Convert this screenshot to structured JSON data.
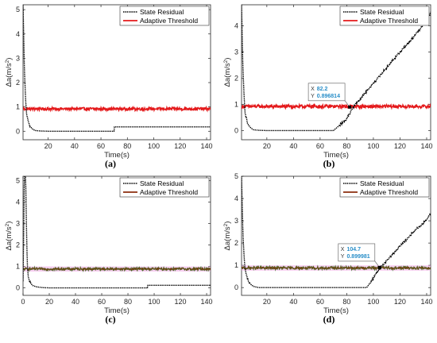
{
  "chart_data": [
    {
      "id": "a",
      "type": "line",
      "panel_label": "(a)",
      "xlabel": "Time(s)",
      "ylabel_base": "Δa(m/s",
      "ylabel_sup": "2",
      "ylabel_close": ")",
      "xlim": [
        1,
        143
      ],
      "ylim": [
        -0.35,
        5.2
      ],
      "xticks": [
        "20",
        "40",
        "60",
        "80",
        "100",
        "120",
        "140"
      ],
      "yticks": [
        "0",
        "1",
        "2",
        "3",
        "4",
        "5"
      ],
      "threshold_style": "red",
      "legend": {
        "placement": "top-right",
        "entries": [
          "State Residual",
          "Adaptive Threshold"
        ]
      },
      "series": [
        {
          "name": "State Residual",
          "color": "#000000",
          "style": "dotted",
          "x": [
            1,
            2,
            3,
            3.6,
            4.3,
            5,
            6,
            8,
            10,
            14,
            20,
            30,
            40,
            50,
            60,
            70,
            70,
            80,
            90,
            100,
            110,
            120,
            130,
            140,
            143
          ],
          "y": [
            5.2,
            2.6,
            1.25,
            0.75,
            0.55,
            0.4,
            0.22,
            0.1,
            0.03,
            0.01,
            0.0,
            0.0,
            0.0,
            0.0,
            0.0,
            0.0,
            0.18,
            0.18,
            0.18,
            0.18,
            0.18,
            0.18,
            0.18,
            0.18,
            0.18
          ]
        },
        {
          "name": "Adaptive Threshold",
          "color": "#e41a1c",
          "style": "noisy",
          "mean": 0.92,
          "noise": 0.06,
          "x": [
            1,
            143
          ],
          "y": [
            0.92,
            0.92
          ]
        }
      ]
    },
    {
      "id": "b",
      "type": "line",
      "panel_label": "(b)",
      "xlabel": "Time(s)",
      "ylabel_base": "Δa(m/s",
      "ylabel_sup": "2",
      "ylabel_close": ")",
      "xlim": [
        1,
        143
      ],
      "ylim": [
        -0.35,
        4.8
      ],
      "xticks": [
        "20",
        "40",
        "60",
        "80",
        "100",
        "120",
        "140"
      ],
      "yticks": [
        "0",
        "1",
        "2",
        "3",
        "4"
      ],
      "threshold_style": "red",
      "legend": {
        "placement": "top-right",
        "entries": [
          "State Residual",
          "Adaptive Threshold"
        ]
      },
      "datatip": {
        "x_label": "X",
        "x_value": "82.2",
        "y_label": "Y",
        "y_value": "0.896814",
        "x": 82.2,
        "y": 0.8968
      },
      "series": [
        {
          "name": "State Residual",
          "color": "#000000",
          "style": "dotted",
          "x": [
            1,
            2,
            3,
            3.6,
            4.3,
            5,
            6,
            8,
            10,
            14,
            20,
            30,
            40,
            50,
            60,
            70,
            75,
            80,
            85,
            90,
            100,
            110,
            120,
            130,
            140,
            143
          ],
          "y": [
            4.8,
            2.4,
            1.2,
            0.72,
            0.52,
            0.38,
            0.22,
            0.1,
            0.03,
            0.01,
            0.0,
            0.0,
            0.0,
            0.0,
            0.0,
            0.0,
            0.22,
            0.45,
            0.9,
            1.2,
            1.8,
            2.4,
            3.0,
            3.55,
            4.2,
            4.5
          ]
        },
        {
          "name": "Adaptive Threshold",
          "color": "#e41a1c",
          "style": "noisy",
          "mean": 0.92,
          "noise": 0.06,
          "x": [
            1,
            143
          ],
          "y": [
            0.92,
            0.92
          ]
        }
      ]
    },
    {
      "id": "c",
      "type": "line",
      "panel_label": "(c)",
      "xlabel": "Time(s)",
      "ylabel_base": "Δa(m/s",
      "ylabel_sup": "2",
      "ylabel_close": ")",
      "xlim": [
        0,
        143
      ],
      "ylim": [
        -0.35,
        5.2
      ],
      "xticks": [
        "0",
        "20",
        "40",
        "60",
        "80",
        "100",
        "120",
        "140"
      ],
      "yticks": [
        "0",
        "1",
        "2",
        "3",
        "4",
        "5"
      ],
      "threshold_style": "banded",
      "legend": {
        "placement": "top-right",
        "entries": [
          "State Residual",
          "Adaptive Threshold"
        ]
      },
      "series": [
        {
          "name": "State Residual",
          "color": "#000000",
          "style": "dotted",
          "x": [
            0,
            1,
            2,
            2.6,
            3.2,
            4,
            5,
            7,
            10,
            15,
            20,
            40,
            60,
            80,
            95,
            95,
            100,
            120,
            140,
            143
          ],
          "y": [
            0.3,
            5.2,
            5.2,
            2.8,
            1.2,
            0.5,
            0.3,
            0.12,
            0.05,
            0.01,
            0.0,
            0.0,
            0.0,
            0.0,
            0.0,
            0.12,
            0.12,
            0.12,
            0.12,
            0.12
          ]
        },
        {
          "name": "Adaptive Threshold",
          "color": "#c0392b",
          "style": "noisy",
          "mean": 0.88,
          "noise": 0.06,
          "x": [
            0,
            143
          ],
          "y": [
            0.88,
            0.88
          ]
        }
      ]
    },
    {
      "id": "d",
      "type": "line",
      "panel_label": "(d)",
      "xlabel": "Time(s)",
      "ylabel_base": "Δa(m/s",
      "ylabel_sup": "2",
      "ylabel_close": ")",
      "xlim": [
        1,
        143
      ],
      "ylim": [
        -0.35,
        5.0
      ],
      "xticks": [
        "20",
        "40",
        "60",
        "80",
        "100",
        "120",
        "140"
      ],
      "yticks": [
        "0",
        "1",
        "2",
        "3",
        "4",
        "5"
      ],
      "threshold_style": "banded",
      "legend": {
        "placement": "top-right",
        "entries": [
          "State Residual",
          "Adaptive Threshold"
        ]
      },
      "datatip": {
        "x_label": "X",
        "x_value": "104.7",
        "y_label": "Y",
        "y_value": "0.899981",
        "x": 104.7,
        "y": 0.9
      },
      "series": [
        {
          "name": "State Residual",
          "color": "#000000",
          "style": "dotted",
          "x": [
            1,
            2,
            3,
            3.6,
            4.3,
            5,
            6,
            8,
            10,
            14,
            20,
            40,
            60,
            80,
            95,
            100,
            105,
            110,
            120,
            130,
            140,
            143
          ],
          "y": [
            5.0,
            2.5,
            1.3,
            0.9,
            0.65,
            0.48,
            0.3,
            0.14,
            0.05,
            0.0,
            0.0,
            0.0,
            0.0,
            0.0,
            0.0,
            0.42,
            0.9,
            1.2,
            1.85,
            2.5,
            3.05,
            3.35
          ]
        },
        {
          "name": "Adaptive Threshold",
          "color": "#c0392b",
          "style": "noisy",
          "mean": 0.88,
          "noise": 0.06,
          "x": [
            1,
            143
          ],
          "y": [
            0.88,
            0.88
          ]
        }
      ]
    }
  ],
  "colors": {
    "axis": "#262626",
    "residual": "#000000",
    "threshold_red": "#e41a1c",
    "threshold_dark": "#8b2d0e",
    "threshold_green": "#3b7a2c",
    "band": "#f2a6e6",
    "datatip_value": "#2a8fc9"
  }
}
